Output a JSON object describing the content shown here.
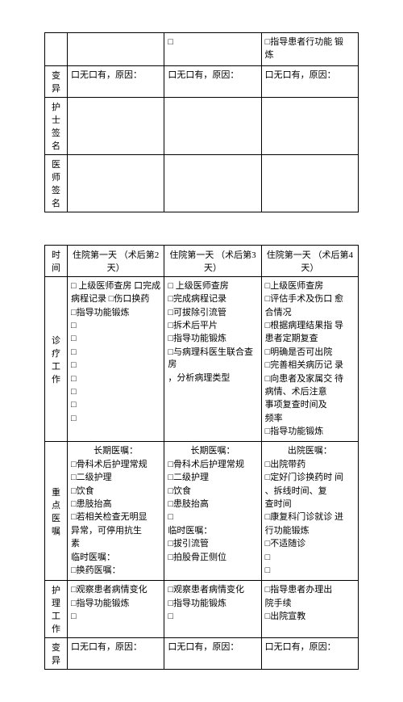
{
  "table1": {
    "rows": [
      {
        "label": "",
        "c1": [],
        "c2": [
          "□"
        ],
        "c3": [
          "□指导患者行功能  锻",
          "炼"
        ]
      },
      {
        "label": "变异",
        "c1": [
          "口无口有，原因："
        ],
        "c2": [
          "口无口有，原因："
        ],
        "c3": [
          "口无口有，原因："
        ]
      },
      {
        "label": "护士签名",
        "c1": [],
        "c2": [],
        "c3": []
      },
      {
        "label": "医师签名",
        "c1": [],
        "c2": [],
        "c3": []
      }
    ]
  },
  "table2": {
    "header": {
      "time": "时间",
      "c1": "住院第一天 （术后第2天）",
      "c2": "住院第一天 （术后第3天）",
      "c3": "住院第一天 （术后第4天）"
    },
    "rows": [
      {
        "label": "诊疗工作",
        "c1": [
          "□ 上级医师查房 口完成",
          "病程记录 □伤口换药",
          "□指导功能锻炼",
          "□",
          "□",
          "□",
          "□",
          "□",
          "□",
          "□",
          "□"
        ],
        "c2": [
          "□ 上级医师查房",
          "□完成病程记录",
          "□可拔除引流管",
          "□拆术后平片",
          "□指导功能锻炼",
          "□与病理科医生联合查  房",
          "，分析病理类型"
        ],
        "c3": [
          "□上级医师查房",
          "□评估手术及伤口  愈",
          "合情况",
          "□根据病理结果指  导",
          "患者定期复查",
          "□明确是否可出院",
          "□完善相关病历记  录",
          "□向患者及家属交  待",
          "病情、术后注意",
          "事项复查时间及",
          "频率",
          "□指导功能锻炼"
        ]
      },
      {
        "label": "重点医 嘱",
        "c1_title": "长期医嘱：",
        "c1": [
          "□骨科术后护理常规",
          "□二级护理",
          "□饮食",
          "□患肢抬高",
          "□若相关检查无明显",
          "异常，可停用抗生",
          "素",
          "临时医嘱：",
          "□换药医嘱："
        ],
        "c2_title": "长期医嘱：",
        "c2": [
          "□骨科术后护理常规",
          "□二级护理",
          "□饮食",
          "□患肢抬高",
          "□",
          "临时医嘱：",
          "□拔引流管",
          "□拍股骨正侧位"
        ],
        "c3_title": "出院医嘱：",
        "c3": [
          "□出院带药",
          "□定好门诊换药时  间",
          "、拆线时间、复",
          "查时间",
          "□康复科门诊就诊  进",
          "行功能锻炼",
          "□不适随诊",
          "□",
          "□"
        ]
      },
      {
        "label": "护理工作",
        "c1": [
          "□观察患者病情变化",
          "□指导功能锻炼",
          "□"
        ],
        "c2": [
          "□观察患者病情变化",
          "□指导功能锻炼",
          "□"
        ],
        "c3": [
          "□指导患者办理出",
          "院手续",
          "□出院宣教"
        ]
      },
      {
        "label": "变异",
        "c1": [
          "口无口有，原因："
        ],
        "c2": [
          "口无口有，原因："
        ],
        "c3": [
          "口无口有，原因："
        ]
      }
    ]
  }
}
